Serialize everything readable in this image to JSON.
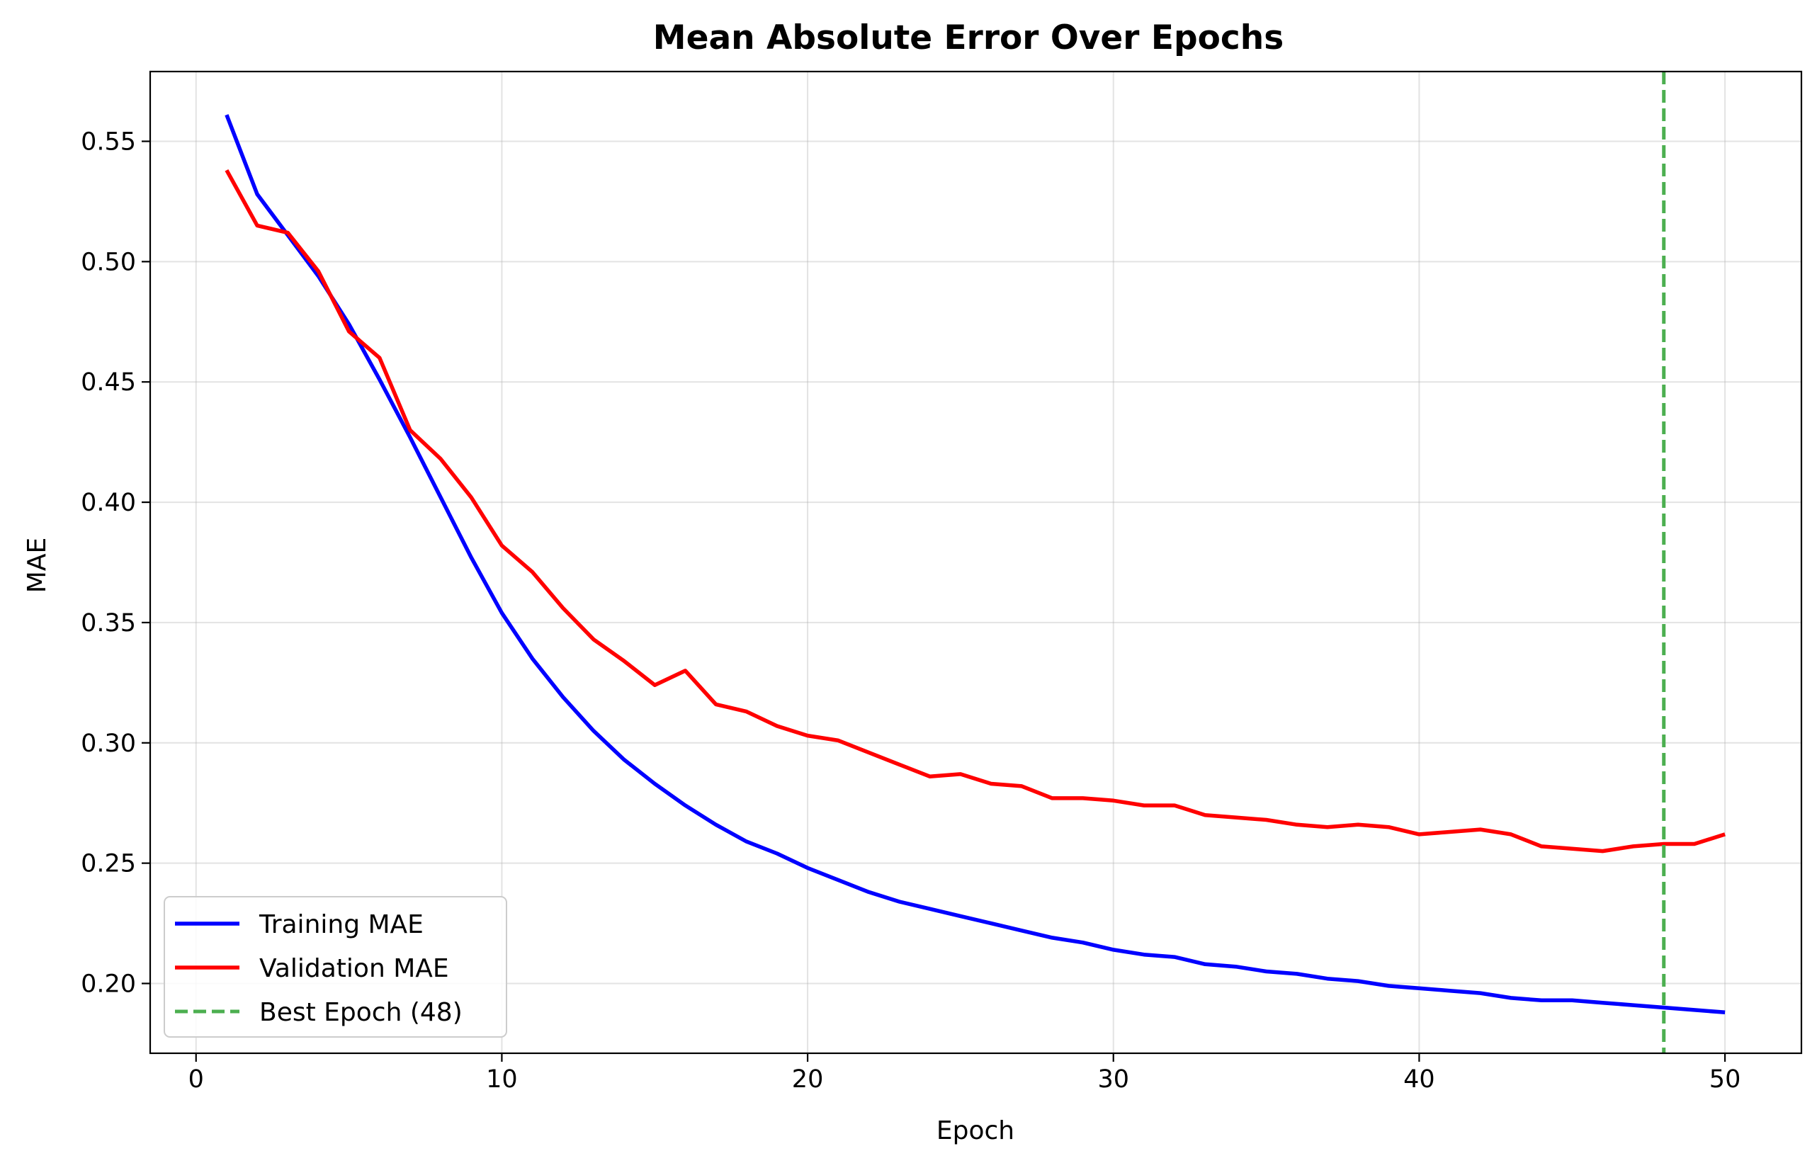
{
  "chart_data": {
    "type": "line",
    "title": "Mean Absolute Error Over Epochs",
    "xlabel": "Epoch",
    "ylabel": "MAE",
    "xlim": [
      -1.5,
      52.5
    ],
    "ylim": [
      0.171,
      0.579
    ],
    "xticks": [
      0,
      10,
      20,
      30,
      40,
      50
    ],
    "xtick_labels": [
      "0",
      "10",
      "20",
      "30",
      "40",
      "50"
    ],
    "yticks": [
      0.2,
      0.25,
      0.3,
      0.35,
      0.4,
      0.45,
      0.5,
      0.55
    ],
    "ytick_labels": [
      "0.20",
      "0.25",
      "0.30",
      "0.35",
      "0.40",
      "0.45",
      "0.50",
      "0.55"
    ],
    "grid": true,
    "legend_position": "lower-left",
    "x": [
      1,
      2,
      3,
      4,
      5,
      6,
      7,
      8,
      9,
      10,
      11,
      12,
      13,
      14,
      15,
      16,
      17,
      18,
      19,
      20,
      21,
      22,
      23,
      24,
      25,
      26,
      27,
      28,
      29,
      30,
      31,
      32,
      33,
      34,
      35,
      36,
      37,
      38,
      39,
      40,
      41,
      42,
      43,
      44,
      45,
      46,
      47,
      48,
      49,
      50
    ],
    "series": [
      {
        "name": "Training MAE",
        "color": "#0000ff",
        "style": "solid",
        "values": [
          0.561,
          0.528,
          0.511,
          0.494,
          0.474,
          0.451,
          0.427,
          0.402,
          0.377,
          0.354,
          0.335,
          0.319,
          0.305,
          0.293,
          0.283,
          0.274,
          0.266,
          0.259,
          0.254,
          0.248,
          0.243,
          0.238,
          0.234,
          0.231,
          0.228,
          0.225,
          0.222,
          0.219,
          0.217,
          0.214,
          0.212,
          0.211,
          0.208,
          0.207,
          0.205,
          0.204,
          0.202,
          0.201,
          0.199,
          0.198,
          0.197,
          0.196,
          0.194,
          0.193,
          0.193,
          0.192,
          0.191,
          0.19,
          0.189,
          0.188
        ]
      },
      {
        "name": "Validation MAE",
        "color": "#ff0000",
        "style": "solid",
        "values": [
          0.538,
          0.515,
          0.512,
          0.496,
          0.471,
          0.46,
          0.43,
          0.418,
          0.402,
          0.382,
          0.371,
          0.356,
          0.343,
          0.334,
          0.324,
          0.33,
          0.316,
          0.313,
          0.307,
          0.303,
          0.301,
          0.296,
          0.291,
          0.286,
          0.287,
          0.283,
          0.282,
          0.277,
          0.277,
          0.276,
          0.274,
          0.274,
          0.27,
          0.269,
          0.268,
          0.266,
          0.265,
          0.266,
          0.265,
          0.262,
          0.263,
          0.264,
          0.262,
          0.257,
          0.256,
          0.255,
          0.257,
          0.258,
          0.258,
          0.262
        ]
      }
    ],
    "vlines": [
      {
        "name": "Best Epoch (48)",
        "x": 48,
        "color": "#4caf50",
        "style": "dashed"
      }
    ]
  }
}
